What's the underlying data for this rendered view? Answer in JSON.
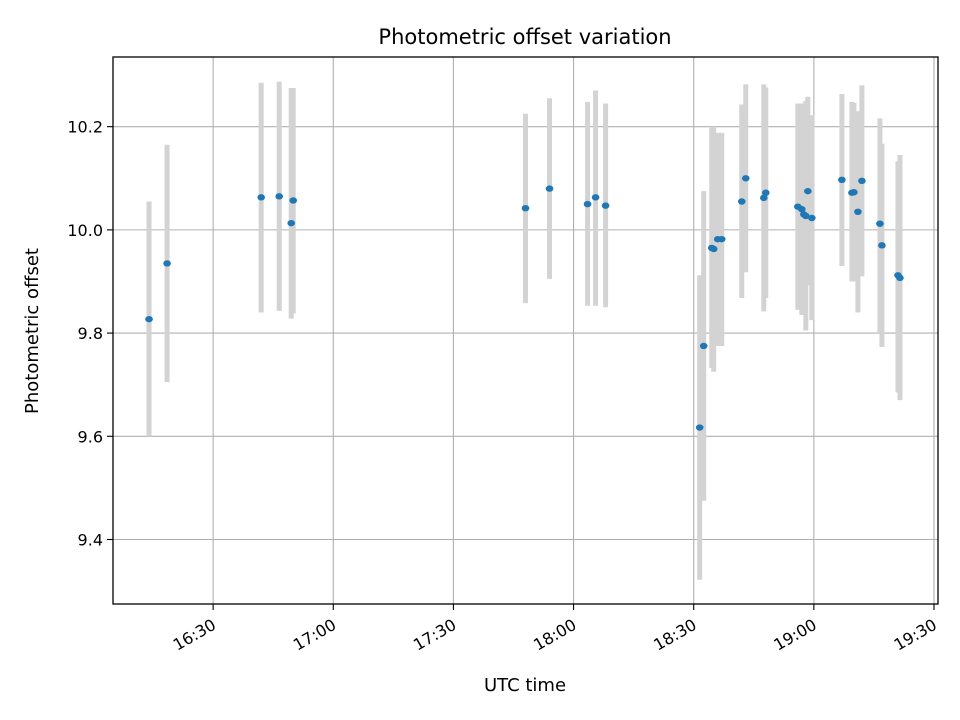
{
  "chart_data": {
    "type": "scatter",
    "title": "Photometric offset variation",
    "xlabel": "UTC time",
    "ylabel": "Photometric offset",
    "x_unit": "UTC HH:MM",
    "xlim": [
      "16:05",
      "19:31"
    ],
    "ylim": [
      9.275,
      10.335
    ],
    "x_ticks": [
      "16:30",
      "17:00",
      "17:30",
      "18:00",
      "18:30",
      "19:00",
      "19:30"
    ],
    "y_ticks": [
      "9.4",
      "9.6",
      "9.8",
      "10.0",
      "10.2"
    ],
    "grid": true,
    "marker_color": "#1f77b4",
    "errorbar_color": "#d3d3d3",
    "series": [
      {
        "points": [
          {
            "x": "16:14:00",
            "y": 9.827,
            "ylow": 9.6,
            "yhigh": 10.055
          },
          {
            "x": "16:18:30",
            "y": 9.935,
            "ylow": 9.705,
            "yhigh": 10.165
          },
          {
            "x": "16:42:00",
            "y": 10.063,
            "ylow": 9.84,
            "yhigh": 10.285
          },
          {
            "x": "16:46:30",
            "y": 10.065,
            "ylow": 9.843,
            "yhigh": 10.287
          },
          {
            "x": "16:49:30",
            "y": 10.013,
            "ylow": 9.828,
            "yhigh": 10.275
          },
          {
            "x": "16:50:00",
            "y": 10.057,
            "ylow": 9.838,
            "yhigh": 10.275
          },
          {
            "x": "17:48:00",
            "y": 10.042,
            "ylow": 9.858,
            "yhigh": 10.225
          },
          {
            "x": "17:54:00",
            "y": 10.08,
            "ylow": 9.905,
            "yhigh": 10.255
          },
          {
            "x": "18:03:30",
            "y": 10.05,
            "ylow": 9.853,
            "yhigh": 10.248
          },
          {
            "x": "18:05:30",
            "y": 10.063,
            "ylow": 9.853,
            "yhigh": 10.27
          },
          {
            "x": "18:08:00",
            "y": 10.047,
            "ylow": 9.85,
            "yhigh": 10.245
          },
          {
            "x": "18:31:30",
            "y": 9.617,
            "ylow": 9.322,
            "yhigh": 9.912
          },
          {
            "x": "18:32:30",
            "y": 9.775,
            "ylow": 9.475,
            "yhigh": 10.075
          },
          {
            "x": "18:34:30",
            "y": 9.965,
            "ylow": 9.732,
            "yhigh": 10.198
          },
          {
            "x": "18:35:00",
            "y": 9.963,
            "ylow": 9.725,
            "yhigh": 10.2
          },
          {
            "x": "18:36:00",
            "y": 9.982,
            "ylow": 9.775,
            "yhigh": 10.188
          },
          {
            "x": "18:37:00",
            "y": 9.982,
            "ylow": 9.775,
            "yhigh": 10.188
          },
          {
            "x": "18:42:00",
            "y": 10.055,
            "ylow": 9.868,
            "yhigh": 10.243
          },
          {
            "x": "18:43:00",
            "y": 10.1,
            "ylow": 9.918,
            "yhigh": 10.282
          },
          {
            "x": "18:47:30",
            "y": 10.062,
            "ylow": 9.842,
            "yhigh": 10.282
          },
          {
            "x": "18:48:00",
            "y": 10.072,
            "ylow": 9.868,
            "yhigh": 10.276
          },
          {
            "x": "18:56:00",
            "y": 10.045,
            "ylow": 9.845,
            "yhigh": 10.245
          },
          {
            "x": "18:57:00",
            "y": 10.04,
            "ylow": 9.835,
            "yhigh": 10.245
          },
          {
            "x": "18:57:30",
            "y": 10.03,
            "ylow": 9.838,
            "yhigh": 10.222
          },
          {
            "x": "18:58:00",
            "y": 10.027,
            "ylow": 9.805,
            "yhigh": 10.25
          },
          {
            "x": "18:58:30",
            "y": 10.075,
            "ylow": 9.893,
            "yhigh": 10.258
          },
          {
            "x": "18:59:30",
            "y": 10.023,
            "ylow": 9.825,
            "yhigh": 10.222
          },
          {
            "x": "19:07:00",
            "y": 10.097,
            "ylow": 9.93,
            "yhigh": 10.263
          },
          {
            "x": "19:09:30",
            "y": 10.072,
            "ylow": 9.9,
            "yhigh": 10.248
          },
          {
            "x": "19:10:00",
            "y": 10.073,
            "ylow": 9.9,
            "yhigh": 10.246
          },
          {
            "x": "19:11:00",
            "y": 10.035,
            "ylow": 9.84,
            "yhigh": 10.23
          },
          {
            "x": "19:12:00",
            "y": 10.095,
            "ylow": 9.91,
            "yhigh": 10.28
          },
          {
            "x": "19:16:30",
            "y": 10.012,
            "ylow": 9.8,
            "yhigh": 10.216
          },
          {
            "x": "19:17:00",
            "y": 9.97,
            "ylow": 9.773,
            "yhigh": 10.167
          },
          {
            "x": "19:21:00",
            "y": 9.912,
            "ylow": 9.685,
            "yhigh": 10.133
          },
          {
            "x": "19:21:30",
            "y": 9.907,
            "ylow": 9.67,
            "yhigh": 10.145
          }
        ]
      }
    ]
  }
}
